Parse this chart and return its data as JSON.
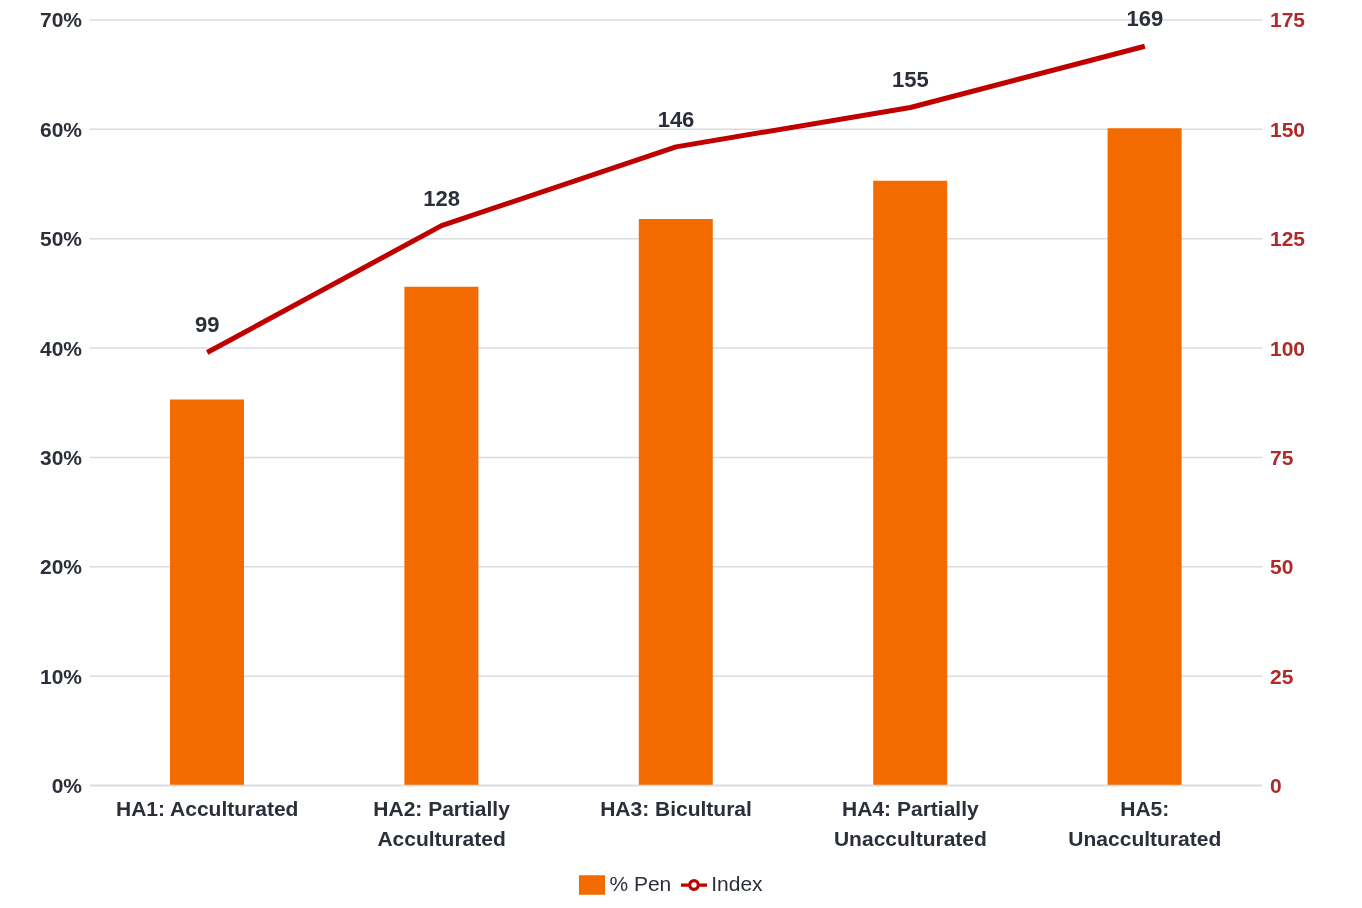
{
  "chart_data": {
    "type": "bar",
    "categories": [
      "HA1: Acculturated",
      "HA2: Partially Acculturated",
      "HA3: Bicultural",
      "HA4: Partially Unacculturated",
      "HA5: Unacculturated"
    ],
    "series": [
      {
        "name": "% Pen",
        "color": "#f26a00",
        "values": [
          35.3,
          45.6,
          51.8,
          55.3,
          60.1
        ]
      },
      {
        "name": "Index",
        "type": "line",
        "axis": "y2",
        "color": "#c00000",
        "values": [
          99,
          128,
          146,
          155,
          169
        ],
        "value_labels": [
          "99",
          "128",
          "146",
          "155",
          "169"
        ]
      }
    ],
    "ylim": [
      0,
      70
    ],
    "yticks": [
      {
        "value": 0,
        "label": "0%"
      },
      {
        "value": 10,
        "label": "10%"
      },
      {
        "value": 20,
        "label": "20%"
      },
      {
        "value": 30,
        "label": "30%"
      },
      {
        "value": 40,
        "label": "40%"
      },
      {
        "value": 50,
        "label": "50%"
      },
      {
        "value": 60,
        "label": "60%"
      },
      {
        "value": 70,
        "label": "70%"
      }
    ],
    "y2lim": [
      0,
      175
    ],
    "y2ticks": [
      0,
      25,
      50,
      75,
      100,
      125,
      150,
      175
    ],
    "grid": "y",
    "legend": "bottom",
    "marker": "none",
    "line_style": "solid"
  }
}
